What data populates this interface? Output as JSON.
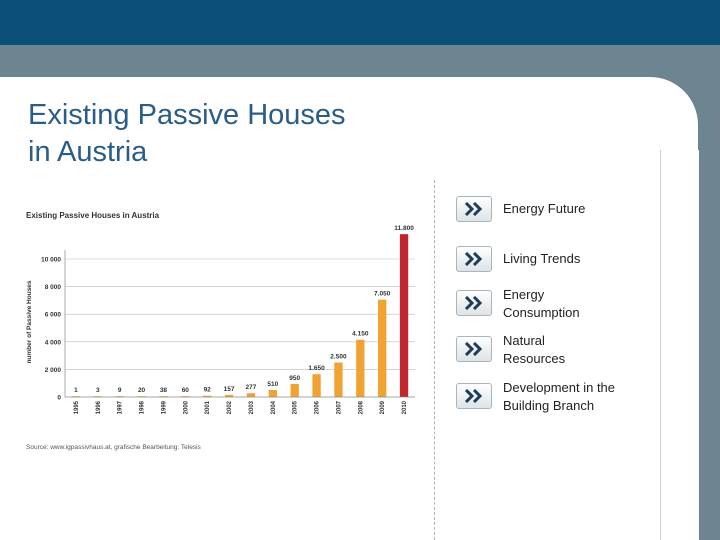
{
  "slide": {
    "title": "Existing Passive Houses\nin Austria"
  },
  "nav": {
    "items": [
      {
        "label": "Energy Future"
      },
      {
        "label": "Living Trends"
      },
      {
        "label": "Energy\nConsumption"
      },
      {
        "label": "Natural\nResources"
      },
      {
        "label": "Development in the\nBuilding Branch"
      }
    ]
  },
  "chart_data": {
    "type": "bar",
    "title": "Existing Passive Houses in Austria",
    "ylabel": "number of Passive Houses",
    "xlabel": "",
    "categories": [
      "1995",
      "1996",
      "1997",
      "1998",
      "1999",
      "2000",
      "2001",
      "2002",
      "2003",
      "2004",
      "2005",
      "2006",
      "2007",
      "2008",
      "2009",
      "2010"
    ],
    "values": [
      1,
      3,
      9,
      20,
      38,
      60,
      92,
      157,
      277,
      510,
      950,
      1650,
      2500,
      4150,
      7050,
      11800
    ],
    "data_labels": [
      "1",
      "3",
      "9",
      "20",
      "38",
      "60",
      "92",
      "157",
      "277",
      "510",
      "950",
      "1.650",
      "2.500",
      "4.150",
      "7.050",
      "11.800"
    ],
    "ylim": [
      0,
      10000
    ],
    "yticks": [
      0,
      2000,
      4000,
      6000,
      8000,
      10000
    ],
    "ytick_labels": [
      "0",
      "2 000",
      "4 000",
      "6 000",
      "8 000",
      "10 000"
    ],
    "colors": {
      "normal": "#f0a332",
      "highlight": "#c0262d"
    },
    "highlight_category": "2010",
    "grid": true,
    "source": "Source: www.igpassivhaus.at, grafische Bearbeitung: Telesis"
  }
}
